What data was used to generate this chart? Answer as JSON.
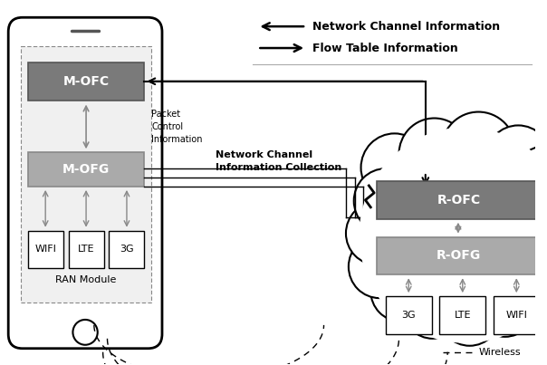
{
  "bg_color": "#ffffff",
  "phone_fill": "#f5f5f5",
  "dark_box_fill": "#7a7a7a",
  "medium_box_fill": "#aaaaaa",
  "white_fill": "#ffffff",
  "edge_dark": "#555555",
  "edge_medium": "#888888",
  "edge_black": "#000000",
  "gray_arrow": "#888888",
  "black": "#000000",
  "legend_arrow1_text": "Network Channel Information",
  "legend_arrow2_text": "Flow Table Information",
  "nci_label": "Network Channel\nInformation Collection",
  "packet_label": "Packet\nControl\nInformation",
  "ran_label": "RAN Module",
  "wireless_label": "Wireless"
}
